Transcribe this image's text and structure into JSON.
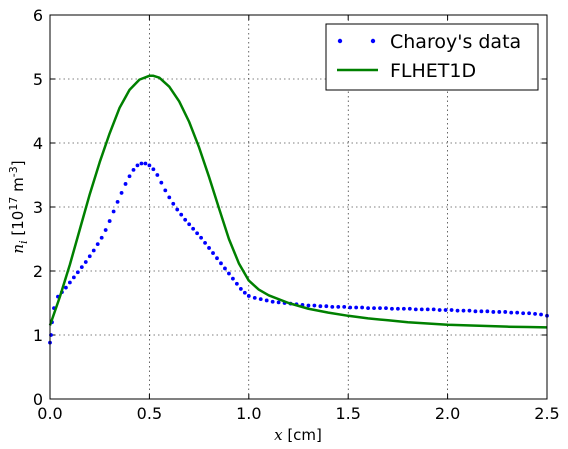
{
  "chart_data": {
    "type": "line",
    "xlabel": "x [cm]",
    "ylabel": "n_i [10^17 m^-3]",
    "xlim": [
      0,
      2.5
    ],
    "ylim": [
      0,
      6
    ],
    "x_ticks": [
      "0.0",
      "0.5",
      "1.0",
      "1.5",
      "2.0",
      "2.5"
    ],
    "y_ticks": [
      "0",
      "1",
      "2",
      "3",
      "4",
      "5",
      "6"
    ],
    "grid": true,
    "legend_position": "top-right",
    "series": [
      {
        "name": "Charoy's data",
        "style": "dots",
        "color": "#0000ff",
        "points": [
          [
            0.0,
            0.88
          ],
          [
            0.005,
            1.0
          ],
          [
            0.01,
            1.2
          ],
          [
            0.02,
            1.42
          ],
          [
            0.04,
            1.6
          ],
          [
            0.06,
            1.67
          ],
          [
            0.08,
            1.74
          ],
          [
            0.1,
            1.82
          ],
          [
            0.12,
            1.9
          ],
          [
            0.14,
            1.98
          ],
          [
            0.16,
            2.06
          ],
          [
            0.18,
            2.14
          ],
          [
            0.2,
            2.23
          ],
          [
            0.22,
            2.32
          ],
          [
            0.24,
            2.42
          ],
          [
            0.26,
            2.52
          ],
          [
            0.28,
            2.64
          ],
          [
            0.3,
            2.78
          ],
          [
            0.32,
            2.93
          ],
          [
            0.34,
            3.08
          ],
          [
            0.36,
            3.22
          ],
          [
            0.38,
            3.36
          ],
          [
            0.4,
            3.48
          ],
          [
            0.42,
            3.58
          ],
          [
            0.44,
            3.65
          ],
          [
            0.46,
            3.68
          ],
          [
            0.48,
            3.68
          ],
          [
            0.5,
            3.65
          ],
          [
            0.52,
            3.59
          ],
          [
            0.54,
            3.5
          ],
          [
            0.56,
            3.38
          ],
          [
            0.58,
            3.26
          ],
          [
            0.6,
            3.15
          ],
          [
            0.62,
            3.05
          ],
          [
            0.64,
            2.96
          ],
          [
            0.66,
            2.88
          ],
          [
            0.68,
            2.8
          ],
          [
            0.7,
            2.73
          ],
          [
            0.72,
            2.66
          ],
          [
            0.74,
            2.59
          ],
          [
            0.76,
            2.52
          ],
          [
            0.78,
            2.44
          ],
          [
            0.8,
            2.36
          ],
          [
            0.82,
            2.28
          ],
          [
            0.84,
            2.2
          ],
          [
            0.86,
            2.12
          ],
          [
            0.88,
            2.04
          ],
          [
            0.9,
            1.96
          ],
          [
            0.92,
            1.88
          ],
          [
            0.94,
            1.8
          ],
          [
            0.96,
            1.72
          ],
          [
            0.98,
            1.66
          ],
          [
            1.0,
            1.61
          ],
          [
            1.03,
            1.58
          ],
          [
            1.06,
            1.56
          ],
          [
            1.09,
            1.54
          ],
          [
            1.12,
            1.52
          ],
          [
            1.15,
            1.51
          ],
          [
            1.18,
            1.5
          ],
          [
            1.21,
            1.49
          ],
          [
            1.24,
            1.48
          ],
          [
            1.27,
            1.47
          ],
          [
            1.3,
            1.46
          ],
          [
            1.33,
            1.46
          ],
          [
            1.36,
            1.45
          ],
          [
            1.39,
            1.45
          ],
          [
            1.42,
            1.44
          ],
          [
            1.45,
            1.44
          ],
          [
            1.48,
            1.44
          ],
          [
            1.51,
            1.43
          ],
          [
            1.54,
            1.43
          ],
          [
            1.57,
            1.43
          ],
          [
            1.6,
            1.42
          ],
          [
            1.63,
            1.42
          ],
          [
            1.66,
            1.42
          ],
          [
            1.69,
            1.42
          ],
          [
            1.72,
            1.41
          ],
          [
            1.75,
            1.41
          ],
          [
            1.78,
            1.41
          ],
          [
            1.81,
            1.41
          ],
          [
            1.84,
            1.4
          ],
          [
            1.87,
            1.4
          ],
          [
            1.9,
            1.4
          ],
          [
            1.93,
            1.4
          ],
          [
            1.96,
            1.39
          ],
          [
            1.99,
            1.39
          ],
          [
            2.02,
            1.39
          ],
          [
            2.05,
            1.38
          ],
          [
            2.08,
            1.38
          ],
          [
            2.11,
            1.38
          ],
          [
            2.14,
            1.37
          ],
          [
            2.17,
            1.37
          ],
          [
            2.2,
            1.37
          ],
          [
            2.23,
            1.36
          ],
          [
            2.26,
            1.36
          ],
          [
            2.29,
            1.36
          ],
          [
            2.32,
            1.35
          ],
          [
            2.35,
            1.35
          ],
          [
            2.38,
            1.34
          ],
          [
            2.41,
            1.34
          ],
          [
            2.44,
            1.33
          ],
          [
            2.47,
            1.32
          ],
          [
            2.5,
            1.3
          ]
        ]
      },
      {
        "name": "FLHET1D",
        "style": "line",
        "color": "#008000",
        "points": [
          [
            0.0,
            1.15
          ],
          [
            0.05,
            1.6
          ],
          [
            0.1,
            2.1
          ],
          [
            0.15,
            2.65
          ],
          [
            0.2,
            3.2
          ],
          [
            0.25,
            3.7
          ],
          [
            0.3,
            4.15
          ],
          [
            0.35,
            4.55
          ],
          [
            0.4,
            4.83
          ],
          [
            0.45,
            4.99
          ],
          [
            0.5,
            5.05
          ],
          [
            0.52,
            5.05
          ],
          [
            0.55,
            5.02
          ],
          [
            0.6,
            4.88
          ],
          [
            0.65,
            4.65
          ],
          [
            0.7,
            4.33
          ],
          [
            0.75,
            3.93
          ],
          [
            0.8,
            3.47
          ],
          [
            0.85,
            2.98
          ],
          [
            0.9,
            2.5
          ],
          [
            0.95,
            2.12
          ],
          [
            1.0,
            1.85
          ],
          [
            1.05,
            1.71
          ],
          [
            1.1,
            1.62
          ],
          [
            1.2,
            1.5
          ],
          [
            1.3,
            1.41
          ],
          [
            1.4,
            1.35
          ],
          [
            1.5,
            1.3
          ],
          [
            1.6,
            1.26
          ],
          [
            1.7,
            1.23
          ],
          [
            1.8,
            1.2
          ],
          [
            1.9,
            1.18
          ],
          [
            2.0,
            1.16
          ],
          [
            2.1,
            1.15
          ],
          [
            2.2,
            1.14
          ],
          [
            2.3,
            1.13
          ],
          [
            2.4,
            1.125
          ],
          [
            2.5,
            1.12
          ]
        ]
      }
    ]
  }
}
